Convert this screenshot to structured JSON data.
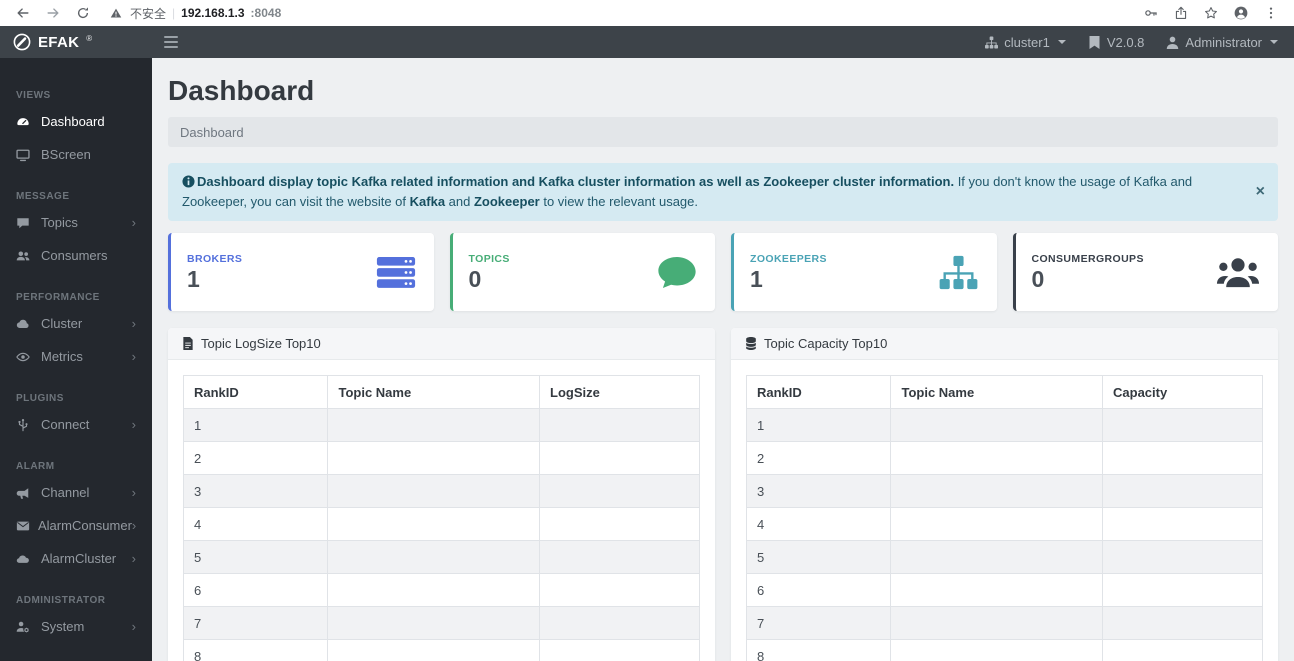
{
  "browser": {
    "security_warning": "不安全",
    "url_host": "192.168.1.3",
    "url_port": ":8048"
  },
  "navbar": {
    "brand": "EFAK",
    "brand_mark": "®",
    "cluster_label": "cluster1",
    "version_label": "V2.0.8",
    "user_label": "Administrator"
  },
  "sidebar": {
    "sections": [
      {
        "label": "VIEWS",
        "items": [
          {
            "label": "Dashboard",
            "icon": "gauge-icon",
            "active": true,
            "submenu": false
          },
          {
            "label": "BScreen",
            "icon": "monitor-icon",
            "active": false,
            "submenu": false
          }
        ]
      },
      {
        "label": "MESSAGE",
        "items": [
          {
            "label": "Topics",
            "icon": "comment-icon",
            "active": false,
            "submenu": true
          },
          {
            "label": "Consumers",
            "icon": "users-icon",
            "active": false,
            "submenu": false
          }
        ]
      },
      {
        "label": "PERFORMANCE",
        "items": [
          {
            "label": "Cluster",
            "icon": "cloud-icon",
            "active": false,
            "submenu": true
          },
          {
            "label": "Metrics",
            "icon": "eye-icon",
            "active": false,
            "submenu": true
          }
        ]
      },
      {
        "label": "PLUGINS",
        "items": [
          {
            "label": "Connect",
            "icon": "plug-icon",
            "active": false,
            "submenu": true
          }
        ]
      },
      {
        "label": "ALARM",
        "items": [
          {
            "label": "Channel",
            "icon": "bullhorn-icon",
            "active": false,
            "submenu": true
          },
          {
            "label": "AlarmConsumer",
            "icon": "envelope-icon",
            "active": false,
            "submenu": true
          },
          {
            "label": "AlarmCluster",
            "icon": "cloud-drive-icon",
            "active": false,
            "submenu": true
          }
        ]
      },
      {
        "label": "ADMINISTRATOR",
        "items": [
          {
            "label": "System",
            "icon": "user-gear-icon",
            "active": false,
            "submenu": true
          }
        ]
      }
    ]
  },
  "page": {
    "title": "Dashboard",
    "breadcrumb": "Dashboard"
  },
  "alert": {
    "bold_intro": "Dashboard display topic Kafka related information and Kafka cluster information as well as Zookeeper cluster information.",
    "text_mid": " If you don't know the usage of Kafka and Zookeeper, you can visit the website of ",
    "link_kafka": "Kafka",
    "text_and": " and ",
    "link_zookeeper": "Zookeeper",
    "text_end": " to view the relevant usage.",
    "close_label": "×"
  },
  "stats": [
    {
      "label": "BROKERS",
      "value": "1",
      "color": "#5470dc",
      "icon": "servers-icon"
    },
    {
      "label": "TOPICS",
      "value": "0",
      "color": "#47ad77",
      "icon": "comment-bubble-icon"
    },
    {
      "label": "ZOOKEEPERS",
      "value": "1",
      "color": "#4aa3b5",
      "icon": "sitemap-icon"
    },
    {
      "label": "CONSUMERGROUPS",
      "value": "0",
      "color": "#39404a",
      "icon": "users-group-icon"
    }
  ],
  "panels": [
    {
      "title": "Topic LogSize Top10",
      "icon": "file-icon",
      "columns": [
        "RankID",
        "Topic Name",
        "LogSize"
      ],
      "rows": [
        [
          "1",
          "",
          ""
        ],
        [
          "2",
          "",
          ""
        ],
        [
          "3",
          "",
          ""
        ],
        [
          "4",
          "",
          ""
        ],
        [
          "5",
          "",
          ""
        ],
        [
          "6",
          "",
          ""
        ],
        [
          "7",
          "",
          ""
        ],
        [
          "8",
          "",
          ""
        ]
      ]
    },
    {
      "title": "Topic Capacity Top10",
      "icon": "database-icon",
      "columns": [
        "RankID",
        "Topic Name",
        "Capacity"
      ],
      "rows": [
        [
          "1",
          "",
          ""
        ],
        [
          "2",
          "",
          ""
        ],
        [
          "3",
          "",
          ""
        ],
        [
          "4",
          "",
          ""
        ],
        [
          "5",
          "",
          ""
        ],
        [
          "6",
          "",
          ""
        ],
        [
          "7",
          "",
          ""
        ],
        [
          "8",
          "",
          ""
        ]
      ]
    }
  ]
}
